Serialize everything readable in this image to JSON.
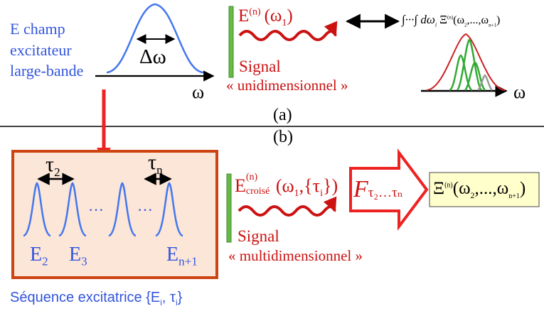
{
  "top": {
    "field_label": [
      "E champ",
      "excitateur",
      "large-bande"
    ],
    "delta_omega": "Δω",
    "omega_axis": "ω",
    "field_E": "E",
    "field_E_sup": "(n)",
    "field_arg": "(ω",
    "field_arg_sub": "1",
    "field_arg_close": ")",
    "signal_label": "Signal",
    "signal_desc": "« unidimensionnel »",
    "integral_text": "∫···∫ dω",
    "integral_sub": "i",
    "integral_xi": "Ξ",
    "integral_xi_sup": "(n)",
    "integral_args": "(ω",
    "integral_args_sub1": "2",
    "integral_args_mid": ",...,ω",
    "integral_args_sub2": "n+1",
    "integral_args_close": ")",
    "omega_right": "ω",
    "panel_label": "(a)"
  },
  "bottom": {
    "panel_label": "(b)",
    "tau2": "τ",
    "tau2_sub": "2",
    "taun": "τ",
    "taun_sub": "n",
    "dots": "···",
    "pulse_labels": [
      {
        "main": "E",
        "sub": "2"
      },
      {
        "main": "E",
        "sub": "3"
      },
      {
        "main": "E",
        "sub": "n+1"
      }
    ],
    "field_E": "E",
    "field_E_sup": "(n)",
    "field_E_sub": "croisé",
    "field_arg": "(ω",
    "field_arg_sub": "1",
    "field_arg_rest": ",{τ",
    "field_arg_sub2": "i",
    "field_arg_close": "})",
    "signal_label": "Signal",
    "signal_desc": "« multidimensionnel »",
    "fourier": "F",
    "fourier_sub": "τ₂…τₙ",
    "result_xi": "Ξ",
    "result_sup": "(n)",
    "result_args": "(ω",
    "result_sub1": "2",
    "result_mid": ",...,ω",
    "result_sub2": "n+1",
    "result_close": ")",
    "sequence_label": "Séquence excitatrice {E",
    "sequence_sub1": "i",
    "sequence_mid": ", τ",
    "sequence_sub2": "i",
    "sequence_close": "}"
  },
  "colors": {
    "blue": "#3355dd",
    "red": "#cc1111",
    "green_bar": "#66bb44",
    "box_fill": "#fbe6d8",
    "box_border": "#cc4411",
    "result_fill": "#ffffcc"
  }
}
